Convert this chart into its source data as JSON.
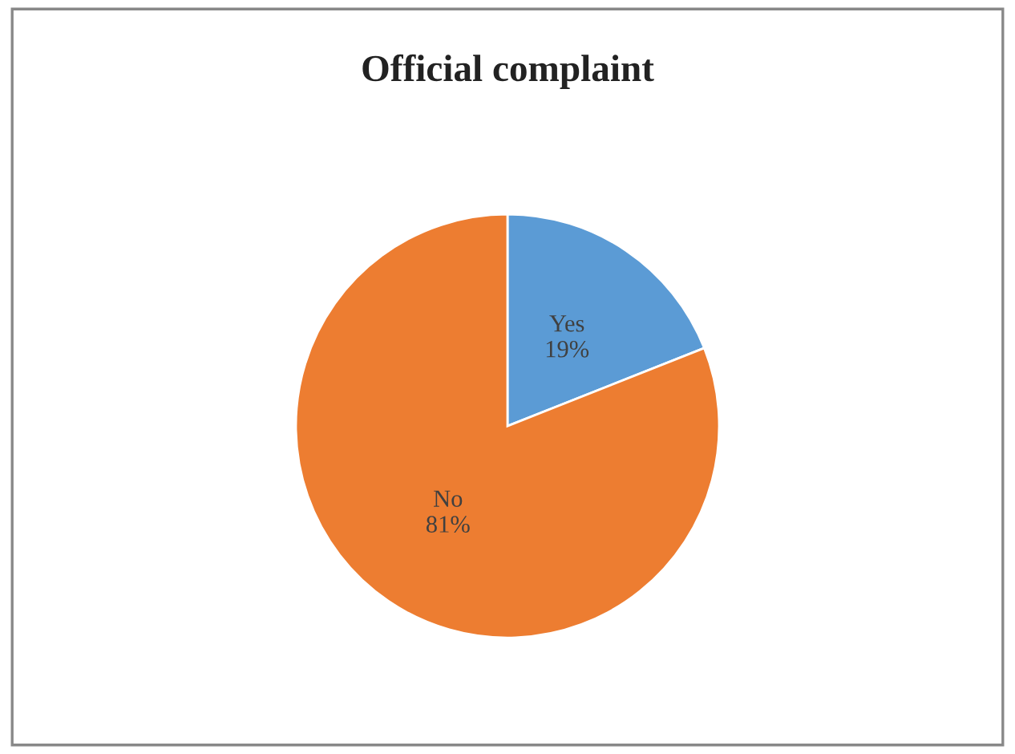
{
  "chart_data": {
    "type": "pie",
    "title": "Official complaint",
    "categories": [
      "Yes",
      "No"
    ],
    "values": [
      19,
      81
    ],
    "value_labels": [
      "19%",
      "81%"
    ],
    "colors": [
      "#5b9bd5",
      "#ed7d31"
    ],
    "legend": false
  }
}
